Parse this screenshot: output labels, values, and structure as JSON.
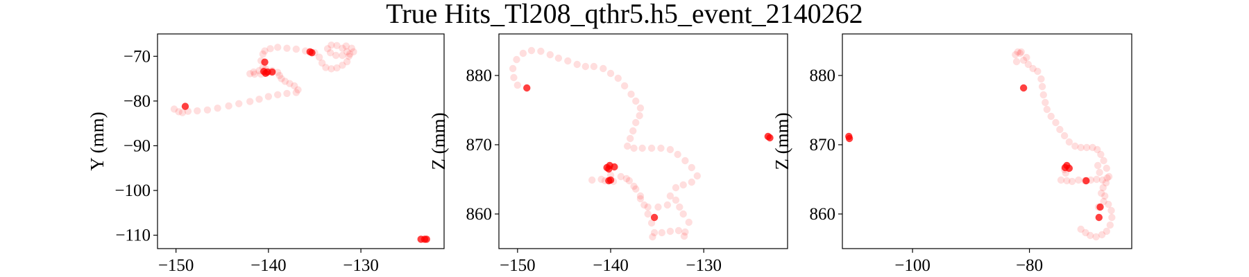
{
  "title": "True Hits_Tl208_qthr5.h5_event_2140262",
  "colors": {
    "hit": "#ff0000",
    "frame": "#000000",
    "background": "#ffffff"
  },
  "chart_data": [
    {
      "type": "scatter",
      "xlabel": "",
      "ylabel": "Y (mm)",
      "xlim": [
        -152,
        -121
      ],
      "ylim": [
        -113,
        -65
      ],
      "xticks": [
        -150,
        -140,
        -130
      ],
      "yticks": [
        -70,
        -80,
        -90,
        -100,
        -110
      ],
      "x_tick_labels": [
        "−150",
        "−140",
        "−130"
      ],
      "y_tick_labels": [
        "−70",
        "−80",
        "−90",
        "−100",
        "−110"
      ],
      "faint_track": [
        [
          -150.2,
          -81.8
        ],
        [
          -149.7,
          -82.4
        ],
        [
          -149.3,
          -82.6
        ],
        [
          -148.7,
          -82.3
        ],
        [
          -147.7,
          -82.2
        ],
        [
          -146.6,
          -82.0
        ],
        [
          -145.5,
          -81.6
        ],
        [
          -144.3,
          -81.1
        ],
        [
          -143.2,
          -80.6
        ],
        [
          -142.0,
          -80.1
        ],
        [
          -141.0,
          -79.6
        ],
        [
          -140.0,
          -79.0
        ],
        [
          -139.0,
          -78.6
        ],
        [
          -138.0,
          -78.3
        ],
        [
          -137.0,
          -78.1
        ],
        [
          -136.8,
          -77.5
        ],
        [
          -137.2,
          -76.6
        ],
        [
          -137.7,
          -76.1
        ],
        [
          -138.2,
          -75.6
        ],
        [
          -138.6,
          -75.0
        ],
        [
          -138.8,
          -74.3
        ],
        [
          -139.0,
          -73.6
        ],
        [
          -139.6,
          -73.2
        ],
        [
          -140.3,
          -72.8
        ],
        [
          -141.0,
          -73.2
        ],
        [
          -141.6,
          -73.5
        ],
        [
          -142.0,
          -73.9
        ],
        [
          -141.5,
          -74.0
        ],
        [
          -140.8,
          -74.0
        ],
        [
          -140.3,
          -73.7
        ],
        [
          -140.6,
          -72.5
        ],
        [
          -140.8,
          -71.0
        ],
        [
          -140.6,
          -69.5
        ],
        [
          -140.4,
          -68.8
        ],
        [
          -139.8,
          -68.3
        ],
        [
          -139.0,
          -68.0
        ],
        [
          -138.0,
          -68.2
        ],
        [
          -137.0,
          -68.4
        ],
        [
          -136.0,
          -68.8
        ],
        [
          -135.0,
          -69.2
        ],
        [
          -134.5,
          -70.2
        ],
        [
          -134.2,
          -71.5
        ],
        [
          -133.8,
          -72.5
        ],
        [
          -133.2,
          -72.8
        ],
        [
          -132.6,
          -72.6
        ],
        [
          -132.0,
          -72.0
        ],
        [
          -131.5,
          -71.2
        ],
        [
          -131.3,
          -70.0
        ],
        [
          -131.5,
          -69.0
        ],
        [
          -132.0,
          -68.2
        ],
        [
          -132.6,
          -67.6
        ],
        [
          -133.2,
          -67.5
        ],
        [
          -133.6,
          -68.3
        ],
        [
          -133.3,
          -69.2
        ],
        [
          -132.7,
          -69.8
        ],
        [
          -132.0,
          -69.8
        ],
        [
          -131.2,
          -69.5
        ],
        [
          -130.8,
          -69.0
        ],
        [
          -131.0,
          -68.2
        ],
        [
          -131.6,
          -67.7
        ]
      ],
      "bright_hits": [
        [
          -149.0,
          -81.2
        ],
        [
          -140.4,
          -71.3
        ],
        [
          -140.5,
          -73.4
        ],
        [
          -140.3,
          -73.8
        ],
        [
          -140.1,
          -73.5
        ],
        [
          -139.6,
          -73.5
        ],
        [
          -135.3,
          -69.2
        ],
        [
          -135.5,
          -69.0
        ],
        [
          -123.5,
          -110.9
        ],
        [
          -123.1,
          -110.9
        ],
        [
          -122.9,
          -110.9
        ]
      ]
    },
    {
      "type": "scatter",
      "xlabel": "",
      "ylabel": "Z (mm)",
      "xlim": [
        -152,
        -121
      ],
      "ylim": [
        855.0,
        886.0
      ],
      "xticks": [
        -150,
        -140,
        -130
      ],
      "yticks": [
        880,
        870,
        860
      ],
      "x_tick_labels": [
        "−150",
        "−140",
        "−130"
      ],
      "y_tick_labels": [
        "880",
        "870",
        "860"
      ],
      "faint_track": [
        [
          -150.0,
          878.6
        ],
        [
          -150.4,
          879.7
        ],
        [
          -150.5,
          881.0
        ],
        [
          -150.1,
          882.3
        ],
        [
          -149.4,
          883.2
        ],
        [
          -148.5,
          883.6
        ],
        [
          -147.5,
          883.5
        ],
        [
          -146.5,
          883.0
        ],
        [
          -145.6,
          882.5
        ],
        [
          -144.6,
          882.1
        ],
        [
          -143.6,
          881.6
        ],
        [
          -142.7,
          881.3
        ],
        [
          -141.8,
          881.3
        ],
        [
          -140.8,
          881.0
        ],
        [
          -140.0,
          880.3
        ],
        [
          -139.2,
          879.6
        ],
        [
          -138.5,
          878.5
        ],
        [
          -137.8,
          877.3
        ],
        [
          -137.3,
          876.3
        ],
        [
          -136.8,
          875.3
        ],
        [
          -136.9,
          874.2
        ],
        [
          -137.3,
          873.2
        ],
        [
          -137.6,
          872.0
        ],
        [
          -137.9,
          870.9
        ],
        [
          -138.2,
          869.8
        ],
        [
          -137.5,
          869.5
        ],
        [
          -136.6,
          869.5
        ],
        [
          -135.6,
          869.5
        ],
        [
          -134.6,
          869.5
        ],
        [
          -133.6,
          869.3
        ],
        [
          -132.8,
          868.6
        ],
        [
          -132.0,
          867.7
        ],
        [
          -131.3,
          866.7
        ],
        [
          -130.7,
          865.5
        ],
        [
          -131.3,
          864.6
        ],
        [
          -132.2,
          864.2
        ],
        [
          -133.0,
          863.8
        ],
        [
          -133.6,
          862.6
        ],
        [
          -133.9,
          861.3
        ],
        [
          -134.9,
          861.0
        ],
        [
          -136.0,
          861.0
        ],
        [
          -136.8,
          862.2
        ],
        [
          -137.3,
          863.6
        ],
        [
          -138.0,
          864.8
        ],
        [
          -138.9,
          865.4
        ],
        [
          -140.0,
          865.6
        ],
        [
          -141.0,
          865.0
        ],
        [
          -142.0,
          864.9
        ],
        [
          -140.6,
          864.8
        ],
        [
          -139.7,
          864.7
        ],
        [
          -138.3,
          865.1
        ],
        [
          -137.5,
          864.0
        ],
        [
          -136.8,
          862.6
        ],
        [
          -136.4,
          861.3
        ],
        [
          -136.0,
          860.0
        ],
        [
          -135.6,
          858.7
        ],
        [
          -135.3,
          857.3
        ],
        [
          -135.5,
          856.7
        ],
        [
          -134.5,
          857.3
        ],
        [
          -133.6,
          857.5
        ],
        [
          -132.7,
          857.6
        ],
        [
          -132.0,
          857.4
        ],
        [
          -131.6,
          858.8
        ],
        [
          -132.2,
          860.0
        ],
        [
          -132.6,
          861.0
        ],
        [
          -133.0,
          862.0
        ],
        [
          -132.1,
          856.8
        ]
      ],
      "bright_hits": [
        [
          -149.0,
          878.2
        ],
        [
          -140.4,
          866.7
        ],
        [
          -140.1,
          867.0
        ],
        [
          -140.2,
          866.5
        ],
        [
          -139.6,
          866.8
        ],
        [
          -140.2,
          864.8
        ],
        [
          -140.0,
          864.9
        ],
        [
          -135.3,
          859.5
        ],
        [
          -123.1,
          871.2
        ],
        [
          -122.9,
          871.0
        ]
      ]
    },
    {
      "type": "scatter",
      "xlabel": "",
      "ylabel": "Z (mm)",
      "xlim": [
        -112,
        -62.5
      ],
      "ylim": [
        855.0,
        886.0
      ],
      "xticks": [
        -100,
        -80
      ],
      "yticks": [
        880,
        870,
        860
      ],
      "x_tick_labels": [
        "−100",
        "−80"
      ],
      "y_tick_labels": [
        "880",
        "870",
        "860"
      ],
      "faint_track": [
        [
          -82.4,
          883.0
        ],
        [
          -82.0,
          883.4
        ],
        [
          -81.6,
          883.2
        ],
        [
          -81.0,
          882.2
        ],
        [
          -80.2,
          881.6
        ],
        [
          -79.4,
          881.0
        ],
        [
          -78.6,
          880.6
        ],
        [
          -78.0,
          879.5
        ],
        [
          -77.8,
          878.4
        ],
        [
          -77.6,
          877.2
        ],
        [
          -77.3,
          876.1
        ],
        [
          -77.0,
          875.1
        ],
        [
          -76.3,
          874.1
        ],
        [
          -75.5,
          873.2
        ],
        [
          -74.8,
          872.2
        ],
        [
          -74.0,
          871.3
        ],
        [
          -73.2,
          870.4
        ],
        [
          -72.2,
          869.8
        ],
        [
          -71.2,
          869.6
        ],
        [
          -70.2,
          869.6
        ],
        [
          -69.2,
          869.6
        ],
        [
          -68.4,
          869.3
        ],
        [
          -67.8,
          868.6
        ],
        [
          -67.3,
          867.7
        ],
        [
          -66.8,
          866.6
        ],
        [
          -66.4,
          865.4
        ],
        [
          -66.9,
          864.5
        ],
        [
          -67.4,
          863.8
        ],
        [
          -67.1,
          862.6
        ],
        [
          -66.5,
          861.4
        ],
        [
          -66.0,
          860.5
        ],
        [
          -65.9,
          859.5
        ],
        [
          -66.2,
          858.4
        ],
        [
          -66.8,
          857.5
        ],
        [
          -67.6,
          857.0
        ],
        [
          -68.6,
          856.7
        ],
        [
          -69.6,
          856.9
        ],
        [
          -70.4,
          857.3
        ],
        [
          -71.2,
          857.8
        ],
        [
          -74.6,
          864.9
        ],
        [
          -73.6,
          864.8
        ],
        [
          -72.7,
          864.7
        ],
        [
          -71.6,
          864.9
        ],
        [
          -70.5,
          864.8
        ],
        [
          -69.5,
          864.9
        ],
        [
          -68.5,
          865.0
        ],
        [
          -67.5,
          864.9
        ],
        [
          -66.7,
          865.2
        ],
        [
          -73.8,
          865.9
        ],
        [
          -74.0,
          866.4
        ],
        [
          -68.0,
          866.0
        ],
        [
          -68.3,
          867.0
        ],
        [
          -67.7,
          863.0
        ],
        [
          -67.3,
          861.8
        ],
        [
          -68.2,
          861.0
        ],
        [
          -81.4,
          883.4
        ],
        [
          -80.5,
          882.6
        ],
        [
          -82.2,
          882.0
        ]
      ],
      "bright_hits": [
        [
          -110.9,
          871.2
        ],
        [
          -110.8,
          870.9
        ],
        [
          -81.0,
          878.2
        ],
        [
          -73.9,
          866.7
        ],
        [
          -73.6,
          867.0
        ],
        [
          -73.2,
          866.6
        ],
        [
          -70.3,
          864.8
        ],
        [
          -67.9,
          861.0
        ],
        [
          -68.1,
          859.5
        ]
      ]
    }
  ]
}
